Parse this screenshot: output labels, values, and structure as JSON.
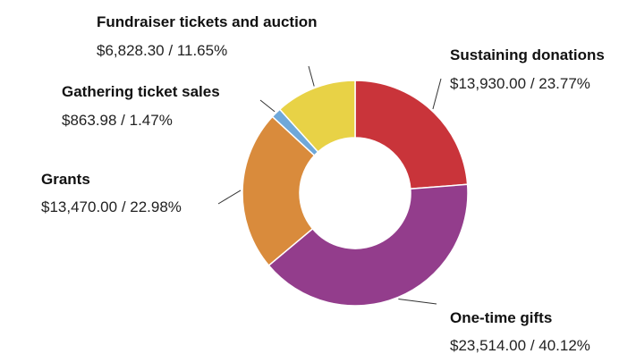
{
  "chart_data": {
    "type": "pie",
    "variant": "donut",
    "slices": [
      {
        "name": "Sustaining donations",
        "value": 13930.0,
        "value_label": "$13,930.00",
        "percent_label": "23.77%",
        "color": "#c9343a"
      },
      {
        "name": "One-time gifts",
        "value": 23514.0,
        "value_label": "$23,514.00",
        "percent_label": "40.12%",
        "color": "#933d8c"
      },
      {
        "name": "Grants",
        "value": 13470.0,
        "value_label": "$13,470.00",
        "percent_label": "22.98%",
        "color": "#d98b3c"
      },
      {
        "name": "Gathering ticket sales",
        "value": 863.98,
        "value_label": "$863.98",
        "percent_label": "1.47%",
        "color": "#6fa8d9"
      },
      {
        "name": "Fundraiser tickets and auction",
        "value": 6828.3,
        "value_label": "$6,828.30",
        "percent_label": "11.65%",
        "color": "#e8d246"
      }
    ],
    "start_angle": "12 o'clock",
    "direction": "clockwise"
  }
}
